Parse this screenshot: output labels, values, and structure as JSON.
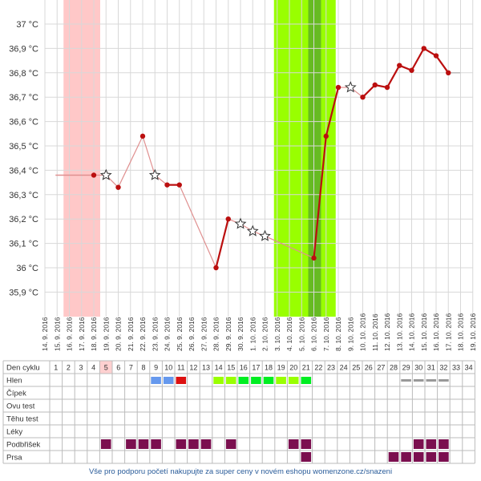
{
  "chart_data": {
    "type": "line",
    "y_unit": "°C",
    "y_ticks": [
      "37 °C",
      "36,9 °C",
      "36,8 °C",
      "36,7 °C",
      "36,6 °C",
      "36,5 °C",
      "36,4 °C",
      "36,3 °C",
      "36,2 °C",
      "36,1 °C",
      "36 °C",
      "35,9 °C"
    ],
    "ylim": [
      35.8,
      37.0
    ],
    "dates": [
      "14. 9. 2016",
      "15. 9. 2016",
      "16. 9. 2016",
      "17. 9. 2016",
      "18. 9. 2016",
      "19. 9. 2016",
      "20. 9. 2016",
      "21. 9. 2016",
      "22. 9. 2016",
      "23. 9. 2016",
      "24. 9. 2016",
      "25. 9. 2016",
      "26. 9. 2016",
      "27. 9. 2016",
      "28. 9. 2016",
      "29. 9. 2016",
      "30. 9. 2016",
      "1. 10. 2016",
      "2. 10. 2016",
      "3. 10. 2016",
      "4. 10. 2016",
      "5. 10. 2016",
      "6. 10. 2016",
      "7. 10. 2016",
      "8. 10. 2016",
      "9. 10. 2016",
      "10. 10. 2016",
      "11. 10. 2016",
      "12. 10. 2016",
      "13. 10. 2016",
      "14. 10. 2016",
      "15. 10. 2016",
      "16. 10. 2016",
      "17. 10. 2016",
      "18. 10. 2016",
      "19. 10. 2016"
    ],
    "series": [
      {
        "values": [
          null,
          null,
          null,
          null,
          36.38,
          36.38,
          36.33,
          null,
          36.54,
          36.38,
          36.34,
          36.34,
          null,
          null,
          36.0,
          36.2,
          36.18,
          36.15,
          36.13,
          null,
          null,
          null,
          36.04,
          36.54,
          36.74,
          36.74,
          36.7,
          36.75,
          36.74,
          36.83,
          36.81,
          36.9,
          36.87,
          36.8,
          null,
          null
        ],
        "marker": [
          "",
          "",
          "",
          "",
          "dot",
          "star",
          "dot",
          "",
          "dot",
          "star",
          "dot",
          "dot",
          "",
          "",
          "dot",
          "dot",
          "star",
          "star",
          "star",
          "",
          "",
          "",
          "dot",
          "dot",
          "dot",
          "star",
          "dot",
          "dot",
          "dot",
          "dot",
          "dot",
          "dot",
          "dot",
          "dot",
          "",
          ""
        ]
      }
    ],
    "grid": true,
    "bands": [
      {
        "label": "menstruation",
        "from": "15. 9. 2016",
        "to": "18. 9. 2016",
        "color": "#ffc8c8"
      },
      {
        "label": "fertile window",
        "from": "3. 10. 2016",
        "to": "7. 10. 2016",
        "color": "#99ff00"
      },
      {
        "label": "peak",
        "from": "6. 10. 2016",
        "to": "6. 10. 2016",
        "color": "#66bb22"
      }
    ],
    "colors": {
      "line": "#bb0f0f",
      "line_thin": "#e09090",
      "accent_blue": "#2a5c9a"
    }
  },
  "table": {
    "rows": [
      "Den cyklu",
      "Hlen",
      "Čípek",
      "Ovu test",
      "Těhu test",
      "Léky",
      "Podbřišek",
      "Prsa"
    ],
    "cycle_days": [
      "1",
      "2",
      "3",
      "4",
      "5",
      "6",
      "7",
      "8",
      "9",
      "10",
      "11",
      "12",
      "13",
      "14",
      "15",
      "16",
      "17",
      "18",
      "19",
      "20",
      "21",
      "22",
      "23",
      "24",
      "25",
      "26",
      "27",
      "28",
      "29",
      "30",
      "31",
      "32",
      "33",
      "34"
    ],
    "highlight_day": "5",
    "hlen_cells": [
      {
        "day": "9",
        "color": "#6699ee"
      },
      {
        "day": "10",
        "color": "#6699ee"
      },
      {
        "day": "11",
        "color": "#dd1111"
      },
      {
        "day": "14",
        "color": "#99ff00"
      },
      {
        "day": "15",
        "color": "#99ff00"
      },
      {
        "day": "16",
        "color": "#00ee22"
      },
      {
        "day": "17",
        "color": "#00ee22"
      },
      {
        "day": "18",
        "color": "#00ee22"
      },
      {
        "day": "19",
        "color": "#99ff00"
      },
      {
        "day": "20",
        "color": "#99ff00"
      },
      {
        "day": "21",
        "color": "#00ee22"
      },
      {
        "day": "29",
        "color": "#999999"
      },
      {
        "day": "30",
        "color": "#999999"
      },
      {
        "day": "31",
        "color": "#999999"
      },
      {
        "day": "32",
        "color": "#999999"
      }
    ],
    "podbrisek_days": [
      "5",
      "7",
      "8",
      "9",
      "11",
      "12",
      "13",
      "15",
      "20",
      "21",
      "30",
      "31",
      "32"
    ],
    "prsa_days": [
      "21",
      "28",
      "29",
      "30",
      "31",
      "32"
    ],
    "marker_color": "#7b0f4f"
  },
  "footer": "Vše pro podporu početí nakupujte za super ceny v novém eshopu womenzone.cz/snazeni"
}
